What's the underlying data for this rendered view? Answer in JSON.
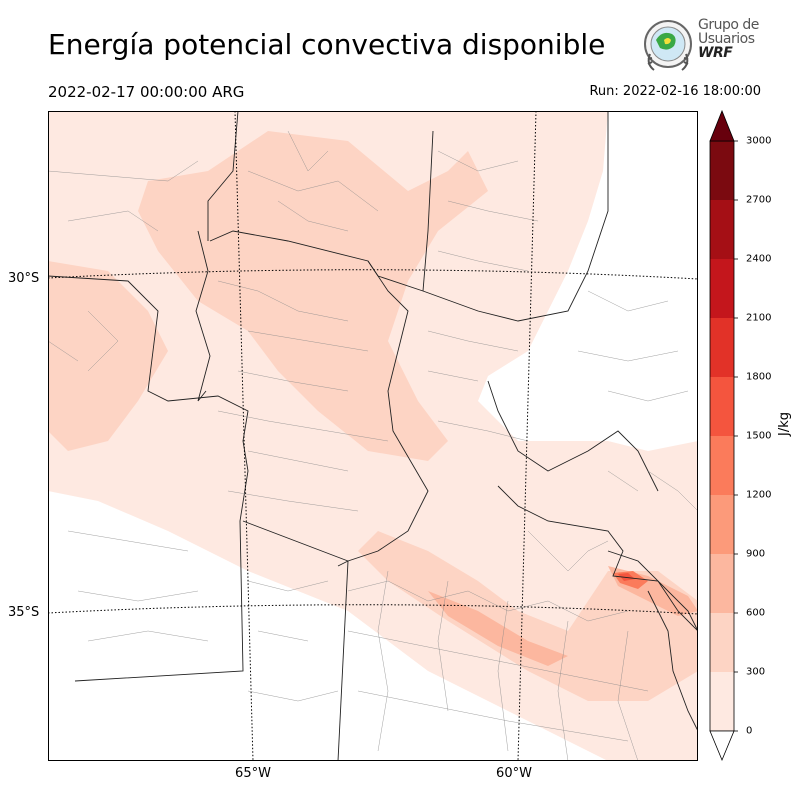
{
  "title": "Energía potencial convectiva disponible",
  "valid_time": "2022-02-17 00:00:00 ARG",
  "run_time": "Run: 2022-02-16 18:00:00",
  "logo": {
    "line1": "Grupo de",
    "line2": "Usuarios",
    "line3": "WRF"
  },
  "lat_labels": [
    "30°S",
    "35°S"
  ],
  "lon_labels": [
    "65°W",
    "60°W"
  ],
  "colorbar": {
    "unit": "J/kg",
    "ticks": [
      "0",
      "300",
      "600",
      "900",
      "1200",
      "1500",
      "1800",
      "2100",
      "2400",
      "2700",
      "3000"
    ],
    "colors": [
      "#fee9e1",
      "#fdd4c4",
      "#fcb79f",
      "#fc9a7a",
      "#fb7b5b",
      "#f4553e",
      "#e23228",
      "#c4161c",
      "#a50f15",
      "#7b0a10"
    ],
    "extend_max_color": "#67000d"
  }
}
